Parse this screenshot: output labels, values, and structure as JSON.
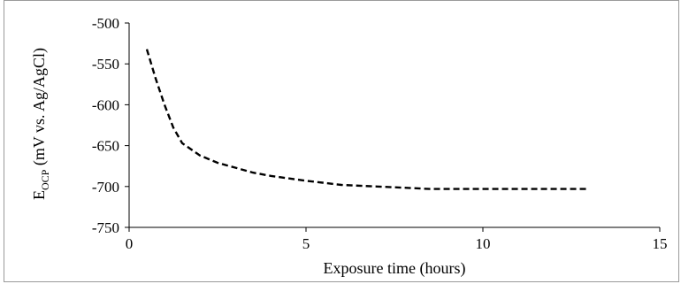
{
  "chart_data": {
    "type": "line",
    "xlabel": "Exposure time (hours)",
    "ylabel_main": "E",
    "ylabel_sub": "OCP",
    "ylabel_rest": " (mV vs. Ag/AgCl)",
    "xlim": [
      0,
      15
    ],
    "ylim": [
      -750,
      -500
    ],
    "x_ticks": [
      0,
      5,
      10,
      15
    ],
    "y_ticks": [
      -500,
      -550,
      -600,
      -650,
      -700,
      -750
    ],
    "x_tick_labels": [
      "0",
      "5",
      "10",
      "15"
    ],
    "y_tick_labels": [
      "-500",
      "-550",
      "-600",
      "-650",
      "-700",
      "-750"
    ],
    "grid": false,
    "line_style": "dashed",
    "line_color": "#000000",
    "series": [
      {
        "x": [
          0.5,
          0.75,
          1.0,
          1.25,
          1.5,
          2.0,
          2.5,
          3.0,
          3.5,
          4.0,
          5.0,
          6.0,
          7.0,
          8.0,
          8.5,
          9.0,
          10.0,
          11.0,
          12.0,
          13.0
        ],
        "values": [
          -532,
          -568,
          -600,
          -628,
          -647,
          -662,
          -671,
          -677,
          -683,
          -687,
          -693,
          -698,
          -700,
          -702,
          -703,
          -703,
          -703,
          -703,
          -703,
          -703
        ]
      }
    ]
  }
}
